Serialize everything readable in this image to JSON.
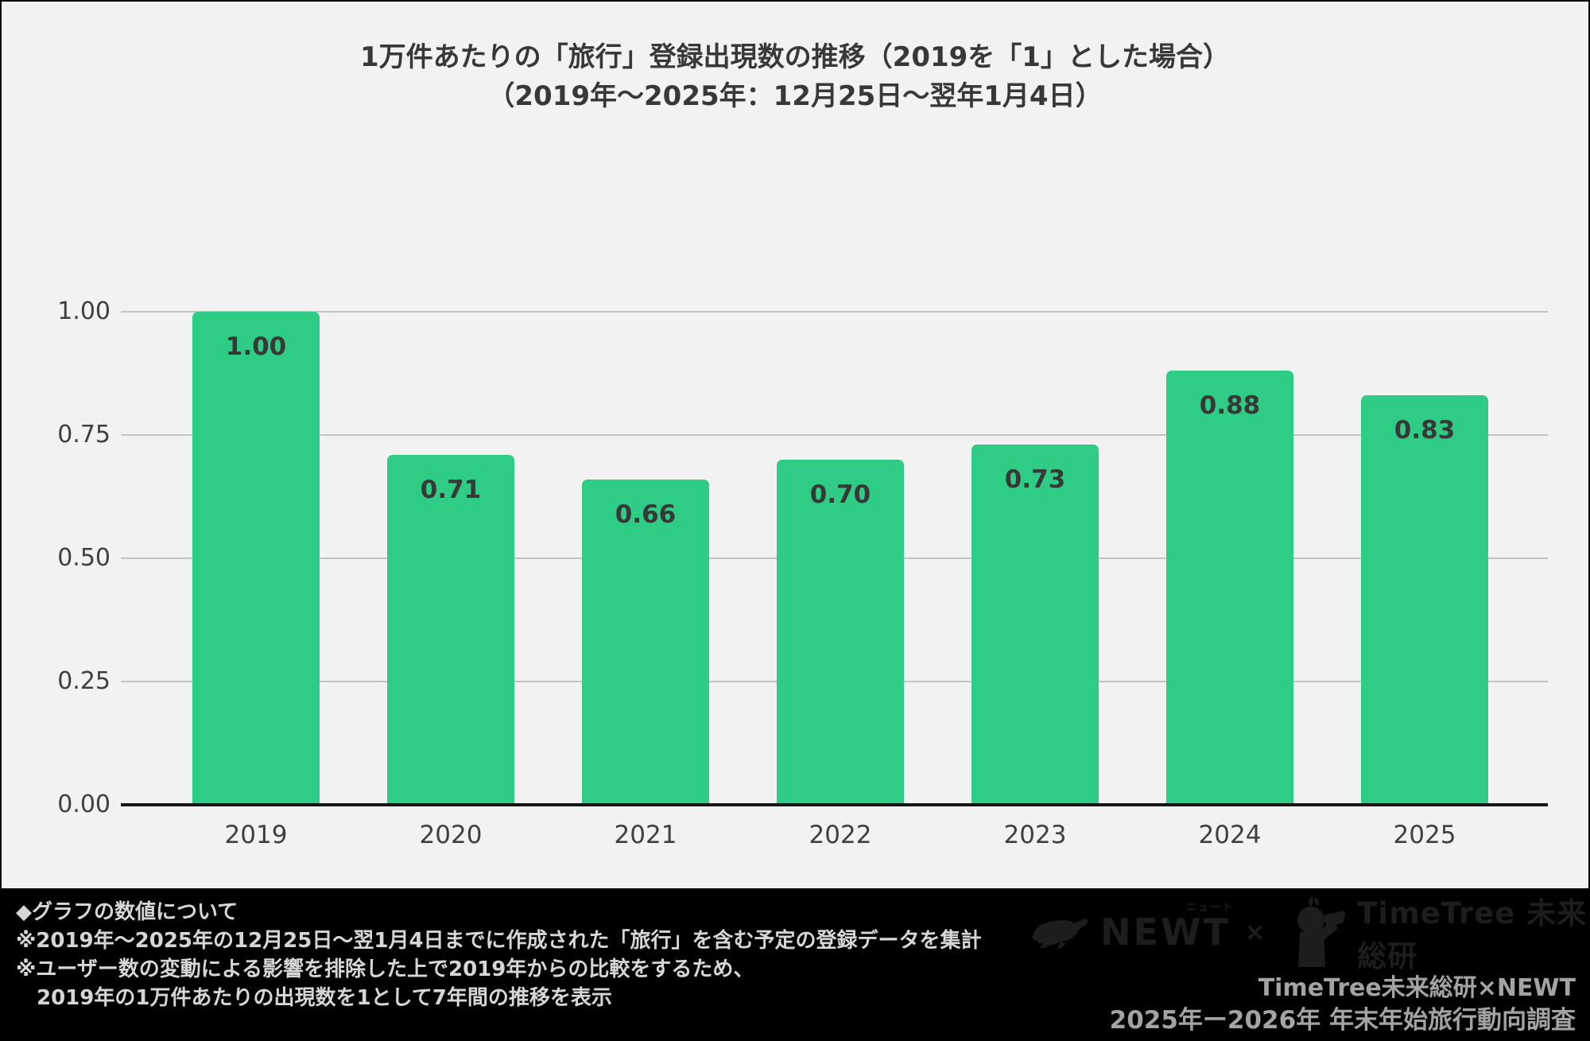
{
  "title": {
    "line1": "1万件あたりの「旅行」登録出現数の推移（2019を「1」とした場合）",
    "line2": "（2019年〜2025年：12月25日〜翌年1月4日）"
  },
  "chart_data": {
    "type": "bar",
    "title": "1万件あたりの「旅行」登録出現数の推移（2019を「1」とした場合）",
    "subtitle": "（2019年〜2025年：12月25日〜翌年1月4日）",
    "categories": [
      "2019",
      "2020",
      "2021",
      "2022",
      "2023",
      "2024",
      "2025"
    ],
    "values": [
      1.0,
      0.71,
      0.66,
      0.7,
      0.73,
      0.88,
      0.83
    ],
    "value_labels": [
      "1.00",
      "0.71",
      "0.66",
      "0.70",
      "0.73",
      "0.88",
      "0.83"
    ],
    "xlabel": "",
    "ylabel": "",
    "ylim": [
      0,
      1.0
    ],
    "yticks": [
      0,
      0.25,
      0.5,
      0.75,
      1.0
    ],
    "ytick_labels": [
      "0.00",
      "0.25",
      "0.50",
      "0.75",
      "1.00"
    ],
    "grid": "horizontal",
    "legend": "none"
  },
  "colors": {
    "background": "#f2f2f2",
    "bar": "#2ecc85",
    "gridline": "#c3c3c3",
    "baseline": "#161616",
    "text_dark": "#383838",
    "axis_text": "#3f3f3f",
    "footer_bg": "#000000",
    "footer_text": "#d6d6d6",
    "credit_text": "#a3a3a3",
    "logo": "#1d1d1d"
  },
  "footer": {
    "notes": [
      "◆グラフの数値について",
      "※2019年〜2025年の12月25日〜翌1月4日までに作成された「旅行」を含む予定の登録データを集計",
      "※ユーザー数の変動による影響を排除した上で2019年からの比較をするため、",
      "　2019年の1万件あたりの出現数を1として7年間の推移を表示"
    ],
    "logos": {
      "newt": "NEWT",
      "newt_katakana": "ニュート",
      "times": "×",
      "timetree": "TimeTree 未来総研"
    },
    "credits": {
      "line1": "TimeTree未来総研×NEWT",
      "line2": "2025年ー2026年 年末年始旅行動向調査"
    }
  }
}
